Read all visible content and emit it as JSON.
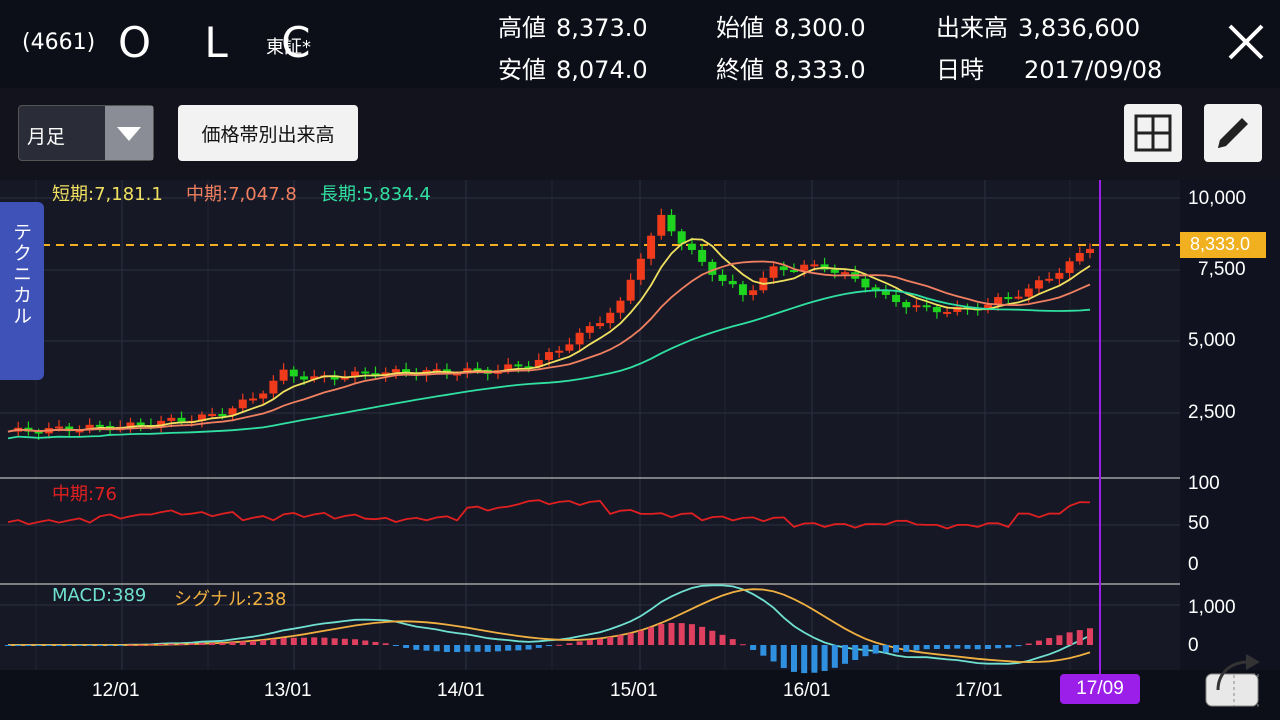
{
  "header": {
    "code": "(4661)",
    "name": "O L C",
    "market": "東証*",
    "quotes": [
      {
        "label": "高値",
        "value": "8,373.0"
      },
      {
        "label": "始値",
        "value": "8,300.0"
      },
      {
        "label": "出来高",
        "value": "3,836,600"
      },
      {
        "label": "安値",
        "value": "8,074.0"
      },
      {
        "label": "終値",
        "value": "8,333.0"
      },
      {
        "label": "日時",
        "value": "2017/09/08"
      }
    ]
  },
  "toolbar": {
    "period": "月足",
    "volume_button": "価格帯別出来高"
  },
  "side_tab": "テクニカル",
  "legend_main": {
    "short": "短期:7,181.1",
    "mid": "中期:7,047.8",
    "long": "長期:5,834.4"
  },
  "legend_rsi": "中期:76",
  "legend_macd": {
    "macd": "MACD:389",
    "signal": "シグナル:238"
  },
  "price_axis": [
    "10,000",
    "7,500",
    "5,000",
    "2,500"
  ],
  "rsi_axis": [
    "100",
    "50",
    "0"
  ],
  "macd_axis": [
    "1,000",
    "0"
  ],
  "x_axis": [
    "12/01",
    "13/01",
    "14/01",
    "15/01",
    "16/01",
    "17/01"
  ],
  "current_price": "8,333.0",
  "current_date": "17/09",
  "colors": {
    "up": "#f03a1c",
    "down": "#1ed41e",
    "short_ma": "#f0e060",
    "mid_ma": "#f08060",
    "long_ma": "#30e0a0",
    "rsi": "#e02020",
    "macd": "#70e0d0",
    "signal": "#f0b040",
    "cursor": "#9b1fe8"
  }
}
